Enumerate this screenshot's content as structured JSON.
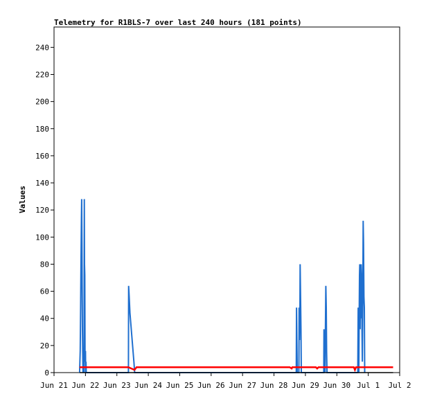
{
  "chart_data": {
    "type": "line",
    "title": "Telemetry for R1BLS-7 over last 240 hours (181 points)",
    "xlabel": "",
    "ylabel": "Values",
    "ylim": [
      0,
      255
    ],
    "y_ticks": [
      0,
      20,
      40,
      60,
      80,
      100,
      120,
      140,
      160,
      180,
      200,
      220,
      240
    ],
    "x_ticks": [
      {
        "label": "Jun 21",
        "t": 0
      },
      {
        "label": "Jun 22",
        "t": 24
      },
      {
        "label": "Jun 23",
        "t": 48
      },
      {
        "label": "Jun 24",
        "t": 72
      },
      {
        "label": "Jun 25",
        "t": 96
      },
      {
        "label": "Jun 26",
        "t": 120
      },
      {
        "label": "Jun 27",
        "t": 144
      },
      {
        "label": "Jun 28",
        "t": 168
      },
      {
        "label": "Jun 29",
        "t": 192
      },
      {
        "label": "Jun 30",
        "t": 216
      },
      {
        "label": "Jul 1",
        "t": 240
      },
      {
        "label": "Jul 2",
        "t": 264
      }
    ],
    "xlim": [
      0,
      264
    ],
    "grid": false,
    "series": [
      {
        "name": "",
        "color": "#1f6fcf",
        "points": [
          [
            19.5,
            0
          ],
          [
            20.0,
            16
          ],
          [
            20.3,
            48
          ],
          [
            20.6,
            80
          ],
          [
            20.9,
            112
          ],
          [
            21.1,
            128
          ],
          [
            21.3,
            96
          ],
          [
            21.5,
            64
          ],
          [
            21.7,
            32
          ],
          [
            21.9,
            16
          ],
          [
            22.1,
            0
          ],
          [
            22.3,
            16
          ],
          [
            22.5,
            0
          ],
          [
            22.7,
            16
          ],
          [
            22.9,
            0
          ],
          [
            23.1,
            128
          ],
          [
            23.3,
            80
          ],
          [
            23.5,
            72
          ],
          [
            23.7,
            8
          ],
          [
            24.0,
            16
          ],
          [
            24.2,
            0
          ],
          [
            24.4,
            8
          ],
          [
            24.6,
            0
          ],
          [
            56.8,
            0
          ],
          [
            57.0,
            64
          ],
          [
            57.4,
            56
          ],
          [
            58.0,
            44
          ],
          [
            59.0,
            32
          ],
          [
            60.0,
            20
          ],
          [
            61.0,
            8
          ],
          [
            61.6,
            0
          ],
          [
            185.0,
            0
          ],
          [
            185.2,
            48
          ],
          [
            185.5,
            24
          ],
          [
            185.8,
            0
          ],
          [
            187.0,
            0
          ],
          [
            187.2,
            48
          ],
          [
            187.5,
            24
          ],
          [
            187.8,
            48
          ],
          [
            188.0,
            80
          ],
          [
            188.3,
            56
          ],
          [
            188.6,
            32
          ],
          [
            188.9,
            0
          ],
          [
            206.0,
            0
          ],
          [
            206.2,
            32
          ],
          [
            206.5,
            16
          ],
          [
            207.0,
            0
          ],
          [
            207.3,
            32
          ],
          [
            207.6,
            64
          ],
          [
            207.9,
            48
          ],
          [
            208.2,
            16
          ],
          [
            208.5,
            0
          ],
          [
            232.0,
            0
          ],
          [
            232.3,
            48
          ],
          [
            232.5,
            24
          ],
          [
            232.8,
            0
          ],
          [
            233.0,
            32
          ],
          [
            233.3,
            72
          ],
          [
            233.5,
            80
          ],
          [
            233.8,
            32
          ],
          [
            234.0,
            64
          ],
          [
            234.3,
            40
          ],
          [
            234.6,
            80
          ],
          [
            234.9,
            72
          ],
          [
            235.2,
            32
          ],
          [
            235.5,
            8
          ],
          [
            235.8,
            48
          ],
          [
            236.1,
            112
          ],
          [
            236.4,
            96
          ],
          [
            236.7,
            56
          ],
          [
            237.0,
            48
          ],
          [
            237.3,
            0
          ]
        ]
      },
      {
        "name": "",
        "color": "#ff0000",
        "points": [
          [
            19.5,
            4
          ],
          [
            52.0,
            4
          ],
          [
            56.8,
            4
          ],
          [
            61.5,
            2
          ],
          [
            63.0,
            4
          ],
          [
            180.0,
            4
          ],
          [
            181.5,
            3
          ],
          [
            182.0,
            4
          ],
          [
            200.0,
            4
          ],
          [
            201.0,
            3
          ],
          [
            202.0,
            4
          ],
          [
            229.0,
            4
          ],
          [
            229.8,
            2
          ],
          [
            230.6,
            4
          ],
          [
            259.0,
            4
          ]
        ]
      },
      {
        "name": "",
        "color": "#000000",
        "points": [
          [
            19.5,
            0
          ],
          [
            259.0,
            0
          ]
        ]
      }
    ]
  }
}
